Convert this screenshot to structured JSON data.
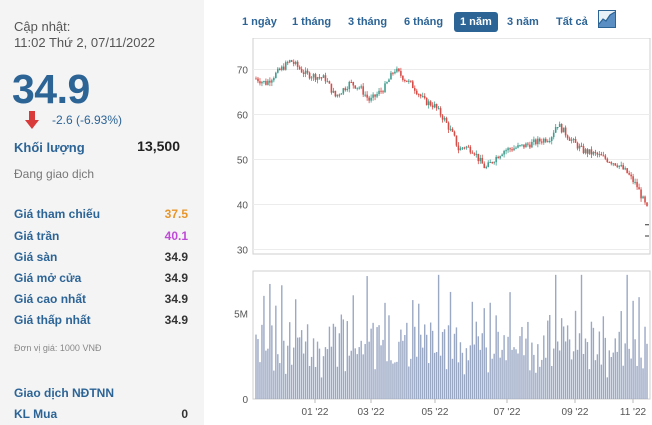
{
  "panel": {
    "updated_label": "Cập nhật:",
    "updated_time": "11:02 Thứ 2, 07/11/2022",
    "price": "34.9",
    "change": "-2.6 (-6.93%)",
    "volume_label": "Khối lượng",
    "volume_value": "13,500",
    "status": "Đang giao dịch",
    "rows": [
      {
        "label": "Giá tham chiếu",
        "value": "37.5",
        "color": "#e8962a"
      },
      {
        "label": "Giá trần",
        "value": "40.1",
        "color": "#c04ad8"
      },
      {
        "label": "Giá sàn",
        "value": "34.9",
        "color": "#333333"
      },
      {
        "label": "Giá mở cửa",
        "value": "34.9",
        "color": "#333333"
      },
      {
        "label": "Giá cao nhất",
        "value": "34.9",
        "color": "#333333"
      },
      {
        "label": "Giá thấp nhất",
        "value": "34.9",
        "color": "#333333"
      }
    ],
    "unit_note": "Đơn vị giá: 1000 VNĐ",
    "foreign_label": "Giao dịch NĐTNN",
    "buy_label": "KL Mua",
    "buy_value": "0"
  },
  "tabs": [
    {
      "label": "1 ngày",
      "active": false
    },
    {
      "label": "1 tháng",
      "active": false
    },
    {
      "label": "3 tháng",
      "active": false
    },
    {
      "label": "6 tháng",
      "active": false
    },
    {
      "label": "1 năm",
      "active": true
    },
    {
      "label": "3 năm",
      "active": false
    },
    {
      "label": "Tất cả",
      "active": false
    }
  ],
  "colors": {
    "accent": "#2c6496",
    "up": "#3f9d8f",
    "down": "#d64c47",
    "volume": "#9aa8c4",
    "down_arrow": "#d93a3a"
  },
  "chart_data": {
    "type": "candlestick",
    "price_ticks": [
      "70",
      "60",
      "50",
      "40",
      "30"
    ],
    "price_range": [
      29,
      77
    ],
    "volume_ticks": [
      "5M",
      "0"
    ],
    "volume_range": [
      0,
      7500000
    ],
    "x_ticks": [
      "01 '22",
      "03 '22",
      "05 '22",
      "07 '22",
      "09 '22",
      "11 '22"
    ],
    "price_path": [
      [
        0,
        68
      ],
      [
        10,
        67
      ],
      [
        25,
        70
      ],
      [
        35,
        72
      ],
      [
        50,
        69
      ],
      [
        70,
        68
      ],
      [
        80,
        64
      ],
      [
        95,
        67
      ],
      [
        105,
        66
      ],
      [
        115,
        63
      ],
      [
        130,
        66
      ],
      [
        140,
        70
      ],
      [
        150,
        68
      ],
      [
        160,
        66
      ],
      [
        170,
        63
      ],
      [
        180,
        62
      ],
      [
        190,
        59
      ],
      [
        200,
        55
      ],
      [
        205,
        52
      ],
      [
        210,
        53
      ],
      [
        220,
        52
      ],
      [
        225,
        50
      ],
      [
        232,
        48
      ],
      [
        240,
        50
      ],
      [
        250,
        52
      ],
      [
        270,
        53
      ],
      [
        285,
        54
      ],
      [
        298,
        55
      ],
      [
        304,
        58
      ],
      [
        312,
        56
      ],
      [
        320,
        54
      ],
      [
        330,
        52
      ],
      [
        345,
        51
      ],
      [
        355,
        50
      ],
      [
        365,
        49
      ],
      [
        375,
        47
      ],
      [
        385,
        44
      ],
      [
        393,
        40
      ],
      [
        397,
        38
      ]
    ],
    "volume_pattern": [
      3.2,
      4.5,
      2.8,
      3.6,
      5.1,
      2.4,
      3.0,
      6.6,
      3.9,
      2.2,
      4.8,
      3.3,
      2.7,
      5.6,
      3.1,
      2.1,
      3.8,
      4.2,
      2.6,
      3.4,
      6.1,
      2.9,
      3.5,
      4.0,
      2.3,
      3.7,
      5.0,
      2.5,
      3.2,
      4.4,
      2.0,
      3.9,
      2.8,
      1.8,
      3.0,
      2.4
    ]
  }
}
